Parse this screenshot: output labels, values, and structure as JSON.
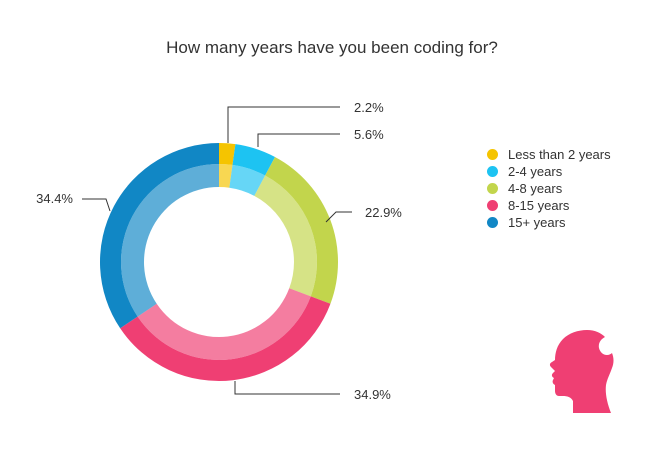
{
  "chart_data": {
    "type": "pie",
    "title": "How many years have you been coding for?",
    "categories": [
      "Less than 2 years",
      "2-4 years",
      "4-8 years",
      "8-15 years",
      "15+ years"
    ],
    "values": [
      2.2,
      5.6,
      22.9,
      34.9,
      34.4
    ],
    "data_labels": [
      "2.2%",
      "5.6%",
      "22.9%",
      "34.9%",
      "34.4%"
    ],
    "colors": [
      "#F5C400",
      "#1DC3F2",
      "#C2D54C",
      "#EF3F73",
      "#1187C5"
    ],
    "donut": true,
    "legend_position": "right"
  },
  "logo": {
    "icon": "head-profile-icon",
    "color": "#EF3F73"
  }
}
